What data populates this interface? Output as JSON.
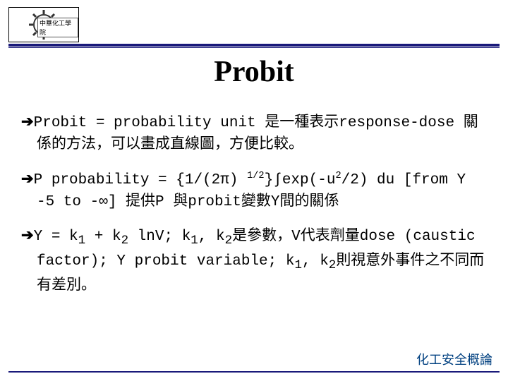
{
  "logo": {
    "label_text": "中華化工學院"
  },
  "title": "Probit",
  "bullets": [
    {
      "html": "Probit = probability unit 是一種表示response-dose 關係的方法，可以畫成直線圖，方便比較。"
    },
    {
      "html": "P probability = {1/(2π) <sup>1/2</sup>}∫exp(-u<sup>2</sup>/2) du [from Y -5 to -∞] 提供P 與probit變數Y間的關係"
    },
    {
      "html": "Y = k<sub>1</sub> + k<sub>2</sub> lnV; k<sub>1</sub>, k<sub>2</sub>是參數，V代表劑量dose (caustic factor); Y probit variable; k<sub>1</sub>, k<sub>2</sub>則視意外事件之不同而有差別。"
    }
  ],
  "footer": "化工安全概論",
  "colors": {
    "rule": "#1a1a7a",
    "footer_text": "#004080",
    "text": "#000000",
    "background": "#ffffff"
  },
  "arrow_glyph": "➔"
}
